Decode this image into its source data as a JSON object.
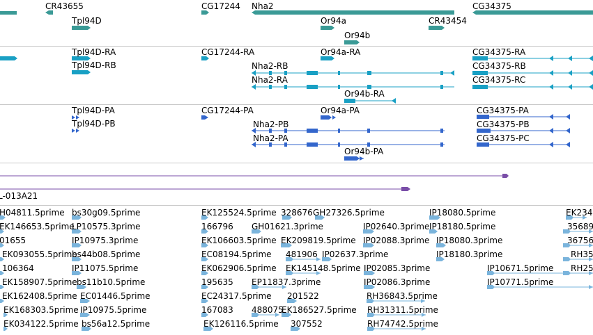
{
  "colors": {
    "gene": "#3a9a96",
    "transcript": "#19a0c4",
    "protein": "#3366cc",
    "clone": "#7a4ea8",
    "est": "#7ab4dc",
    "separator": "#c8c8c8"
  },
  "gene_track": {
    "labels": [
      "CR43655",
      "Tpl94D",
      "CG17244",
      "Nha2",
      "Or94a",
      "CR43454",
      "Or94b",
      "CG34375"
    ]
  },
  "transcript_track": {
    "labels": [
      "Tpl94D-RA",
      "Tpl94D-RB",
      "CG17244-RA",
      "Or94a-RA",
      "Nha2-RB",
      "Nha2-RA",
      "Or94b-RA",
      "CG34375-RA",
      "CG34375-RB",
      "CG34375-RC"
    ]
  },
  "protein_track": {
    "labels": [
      "Tpl94D-PA",
      "Tpl94D-PB",
      "CG17244-PA",
      "Or94a-PA",
      "Nha2-PB",
      "Nha2-PA",
      "Or94b-PA",
      "CG34375-PA",
      "CG34375-PB",
      "CG34375-PC"
    ]
  },
  "clone_track": {
    "labels": [
      "L-013A21"
    ]
  },
  "est_track": {
    "labels": [
      "H04811.5prime",
      "bs30g09.5prime",
      "EK125524.5prime",
      "328676",
      "GH27326.5prime",
      "IP18080.5prime",
      "EK234",
      "EK146653.5prime",
      "LP10575.3prime",
      "166796",
      "GH01621.3prime",
      "IP02640.3prime",
      "IP18180.5prime",
      "35689",
      "01655",
      "IP10975.3prime",
      "EK106603.5prime",
      "EK209819.5prime",
      "IP02088.3prime",
      "IP18080.3prime",
      "36756",
      "EK093055.5prime",
      "bs44b08.5prime",
      "EC08194.5prime",
      "481906",
      "IP02637.3prime",
      "IP18180.3prime",
      "RH35",
      "106364",
      "IP11075.5prime",
      "EK062906.5prime",
      "EK145148.5prime",
      "IP02085.3prime",
      "IP10671.5prime",
      "RH25",
      "EK158907.5prime",
      "bs11b10.5prime",
      "195635",
      "EP11837.3prime",
      "IP02086.3prime",
      "IP10771.5prime",
      "EK162408.5prime",
      "EC01446.5prime",
      "EC24317.5prime",
      "201522",
      "RH36843.5prime",
      "EK168303.5prime",
      "IP10975.5prime",
      "167083",
      "488075",
      "EK186527.5prime",
      "RH31311.5prime",
      "EK034122.5prime",
      "bs56a12.5prime",
      "EK126116.5prime",
      "307552",
      "RH74742.5prime"
    ]
  }
}
